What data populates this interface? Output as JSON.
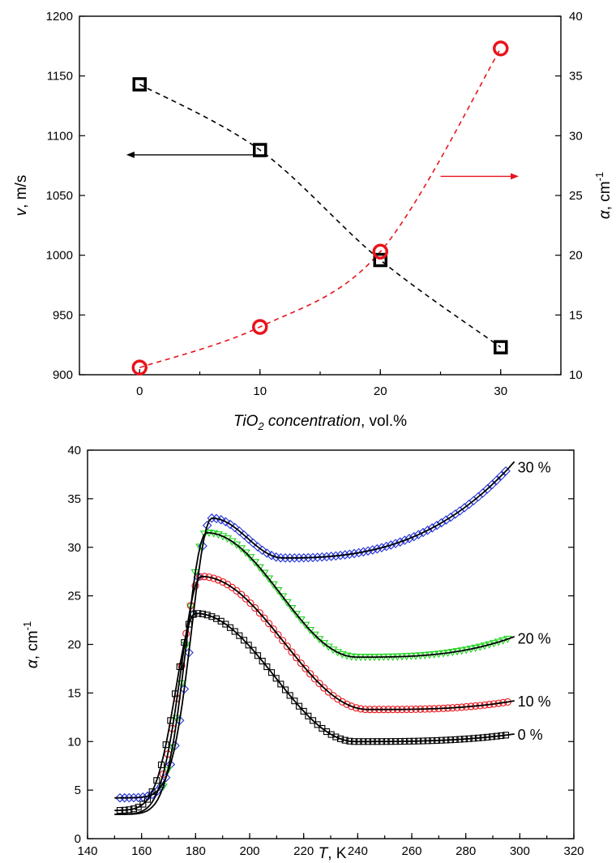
{
  "chart_data": [
    {
      "type": "scatter",
      "x_ticks": [
        "0",
        "10",
        "20",
        "30"
      ],
      "xlim": [
        -5,
        35
      ],
      "xlabel": {
        "main": "TiO",
        "sub": "2",
        "italic_tail": " concentration",
        "tail": ", vol.%"
      },
      "ylabel_left": {
        "italic": "v",
        "tail": ", m/s"
      },
      "ylabel_right": {
        "italic": "α",
        "tail": ", cm",
        "sup": "-1"
      },
      "ylim_left": [
        900,
        1200
      ],
      "ylim_right": [
        10,
        40
      ],
      "y_ticks_left": [
        "900",
        "950",
        "1000",
        "1050",
        "1100",
        "1150",
        "1200"
      ],
      "y_ticks_right": [
        "10",
        "15",
        "20",
        "25",
        "30",
        "35",
        "40"
      ],
      "series": [
        {
          "axis": "left",
          "marker": "square",
          "color": "#000000",
          "x": [
            0,
            10,
            20,
            30
          ],
          "y": [
            1143,
            1088,
            996,
            923
          ]
        },
        {
          "axis": "right",
          "marker": "circle",
          "color": "#e8141b",
          "x": [
            0,
            10,
            20,
            30
          ],
          "y": [
            10.6,
            14.0,
            20.3,
            37.3
          ]
        }
      ],
      "arrows": [
        {
          "direction": "left",
          "axis": "left",
          "color": "#000000"
        },
        {
          "direction": "right",
          "axis": "right",
          "color": "#e8141b"
        }
      ]
    },
    {
      "type": "scatter",
      "xlim": [
        140,
        320
      ],
      "ylim": [
        0,
        40
      ],
      "x_ticks": [
        "140",
        "160",
        "180",
        "200",
        "220",
        "240",
        "260",
        "280",
        "300",
        "320"
      ],
      "y_ticks": [
        "0",
        "5",
        "10",
        "15",
        "20",
        "25",
        "30",
        "35",
        "40"
      ],
      "xlabel": {
        "italic": "T",
        "tail": ", K"
      },
      "ylabel": {
        "italic": "α",
        "tail": ", cm",
        "sup": "-1"
      },
      "fit_color": "#000000",
      "series": [
        {
          "name": "30 %",
          "marker": "diamond",
          "color": "#1f2fd6",
          "base": 4.2,
          "peak_t": 186,
          "peak": 33.0,
          "min_t": 215,
          "min": 28.9,
          "end": 38.2,
          "t_start": 152,
          "t_end": 296
        },
        {
          "name": "20 %",
          "marker": "triangle",
          "color": "#1ed31e",
          "base": 2.5,
          "peak_t": 184,
          "peak": 31.5,
          "min_t": 245,
          "min": 18.7,
          "end": 20.6,
          "t_start": 168,
          "t_end": 296
        },
        {
          "name": "10 %",
          "marker": "circle",
          "color": "#e8141b",
          "base": 2.5,
          "peak_t": 182,
          "peak": 27.0,
          "min_t": 250,
          "min": 13.3,
          "end": 14.1,
          "t_start": 168,
          "t_end": 296
        },
        {
          "name": "0 %",
          "marker": "square",
          "color": "#000000",
          "base": 2.9,
          "peak_t": 180,
          "peak": 23.2,
          "min_t": 245,
          "min": 10.0,
          "end": 10.7,
          "t_start": 152,
          "t_end": 295
        }
      ]
    }
  ]
}
